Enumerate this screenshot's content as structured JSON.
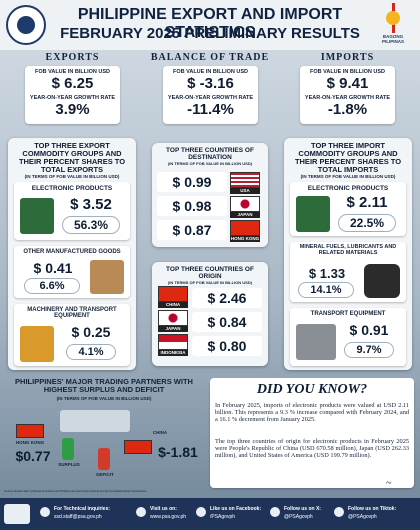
{
  "header": {
    "title": "PHILIPPINE EXPORT AND IMPORT STATISTICS",
    "subtitle": "FEBRUARY 2025 PRELIMINARY RESULTS",
    "logo_right": "BAGONG PILIPINAS"
  },
  "exports": {
    "title": "EXPORTS",
    "fob_label": "FOB VALUE IN BILLION USD",
    "fob_value": "$ 6.25",
    "growth_label": "YEAR-ON-YEAR GROWTH RATE",
    "growth_value": "3.9%"
  },
  "balance": {
    "title": "BALANCE OF TRADE",
    "fob_label": "FOB VALUE IN BILLION USD",
    "fob_value": "$ -3.16",
    "growth_label": "YEAR-ON-YEAR GROWTH RATE",
    "growth_value": "-11.4%"
  },
  "imports": {
    "title": "IMPORTS",
    "fob_label": "FOB VALUE IN BILLION USD",
    "fob_value": "$ 9.41",
    "growth_label": "YEAR-ON-YEAR GROWTH RATE",
    "growth_value": "-1.8%"
  },
  "top_exports": {
    "title": "TOP THREE EXPORT COMMODITY GROUPS AND THEIR PERCENT SHARES TO TOTAL EXPORTS",
    "unit": "(IN TERMS OF FOB VALUE IN BILLION USD)",
    "items": [
      {
        "name": "ELECTRONIC PRODUCTS",
        "value": "$ 3.52",
        "share": "56.3%"
      },
      {
        "name": "OTHER MANUFACTURED GOODS",
        "value": "$ 0.41",
        "share": "6.6%"
      },
      {
        "name": "MACHINERY AND TRANSPORT EQUIPMENT",
        "value": "$ 0.25",
        "share": "4.1%"
      }
    ]
  },
  "top_destinations": {
    "title": "TOP THREE COUNTRIES OF DESTINATION",
    "unit": "(IN TERMS OF FOB VALUE IN BILLION USD)",
    "items": [
      {
        "value": "$ 0.99",
        "country": "USA"
      },
      {
        "value": "$ 0.98",
        "country": "JAPAN"
      },
      {
        "value": "$ 0.87",
        "country": "HONG KONG"
      }
    ]
  },
  "top_origins": {
    "title": "TOP THREE COUNTRIES OF ORIGIN",
    "unit": "(IN TERMS OF FOB VALUE IN BILLION USD)",
    "items": [
      {
        "value": "$ 2.46",
        "country": "CHINA"
      },
      {
        "value": "$ 0.84",
        "country": "JAPAN"
      },
      {
        "value": "$ 0.80",
        "country": "INDONESIA"
      }
    ]
  },
  "top_imports": {
    "title": "TOP THREE IMPORT COMMODITY GROUPS AND THEIR PERCENT SHARES TO TOTAL IMPORTS",
    "unit": "(IN TERMS OF FOB VALUE IN BILLION USD)",
    "items": [
      {
        "name": "ELECTRONIC PRODUCTS",
        "value": "$ 2.11",
        "share": "22.5%"
      },
      {
        "name": "MINERAL FUELS, LUBRICANTS AND RELATED MATERIALS",
        "value": "$ 1.33",
        "share": "14.1%"
      },
      {
        "name": "TRANSPORT EQUIPMENT",
        "value": "$ 0.91",
        "share": "9.7%"
      }
    ]
  },
  "partners": {
    "title": "PHILIPPINES' MAJOR TRADING PARTNERS WITH HIGHEST SURPLUS AND DEFICIT",
    "unit": "(IN TERMS OF FOB VALUE IN BILLION USD)",
    "surplus": {
      "country": "HONG KONG",
      "value": "$0.77",
      "label": "SURPLUS"
    },
    "deficit": {
      "country": "CHINA",
      "value": "$-1.81",
      "label": "DEFICIT"
    }
  },
  "dyk": {
    "title": "DID YOU KNOW?",
    "p1": "In February 2025, imports of electronic products were valued at USD 2.11 billion. This represents a 9.3 % increase compared with February 2024, and a 16.1 % decrement from January 2025.",
    "p2": "The top three countries of origin for electronic products in February 2025 were People's Republic of China (USD 670.58 million), Japan (USD 262.33 million), and United States of America (USD 199.79 million)."
  },
  "source": "Sources of basic data: (1) Bureau of Customs and Philippine Economic Zone Authority and (2) Consolidated Export Declarations...",
  "footer": {
    "inquiries_label": "For Technical inquiries:",
    "inquiries_email": "ssd.staff@psa.gov.ph",
    "web_label": "Visit us on:",
    "web_value": "www.psa.gov.ph",
    "fb_label": "Like us on Facebook:",
    "fb_value": "/PSAgovph",
    "x_label": "Follow us on X:",
    "x_value": "@PSAgovph",
    "tiktok_label": "Follow us on Tiktok:",
    "tiktok_value": "@PSAgovph"
  }
}
